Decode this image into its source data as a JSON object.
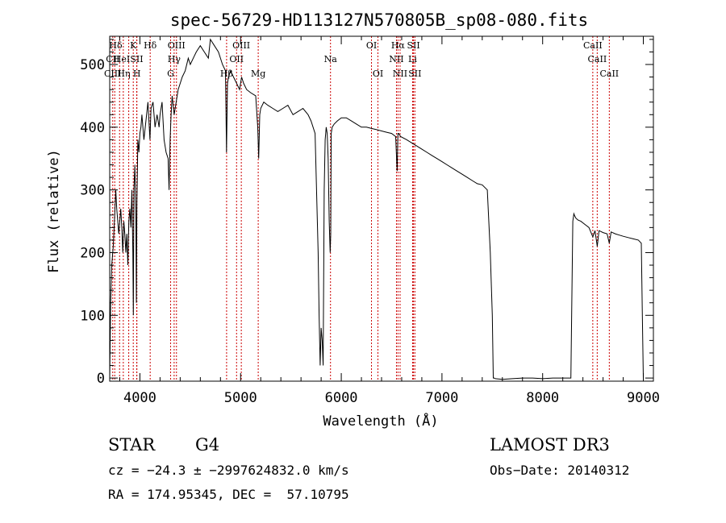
{
  "chart_data": {
    "type": "line",
    "title": "spec-56729-HD113127N570805B_sp08-080.fits",
    "xlabel": "Wavelength (Å)",
    "ylabel": "Flux (relative)",
    "xlim": [
      3700,
      9100
    ],
    "ylim": [
      -5,
      545
    ],
    "xticks": [
      4000,
      5000,
      6000,
      7000,
      8000,
      9000
    ],
    "yticks": [
      0,
      100,
      200,
      300,
      400,
      500
    ],
    "grid": false,
    "series": [
      {
        "x": [
          3700,
          3710,
          3720,
          3735,
          3750,
          3760,
          3770,
          3780,
          3790,
          3800,
          3810,
          3820,
          3830,
          3840,
          3850,
          3860,
          3870,
          3880,
          3890,
          3900,
          3910,
          3920,
          3930,
          3935,
          3940,
          3950,
          3960,
          3965,
          3970,
          3980,
          3990,
          4000,
          4010,
          4020,
          4040,
          4060,
          4080,
          4100,
          4110,
          4130,
          4150,
          4170,
          4190,
          4200,
          4220,
          4240,
          4260,
          4280,
          4290,
          4300,
          4310,
          4320,
          4340,
          4360,
          4380,
          4400,
          4420,
          4450,
          4480,
          4500,
          4530,
          4560,
          4600,
          4640,
          4680,
          4700,
          4740,
          4780,
          4820,
          4850,
          4860,
          4870,
          4880,
          4900,
          4930,
          4960,
          4990,
          5010,
          5030,
          5060,
          5100,
          5150,
          5170,
          5180,
          5190,
          5200,
          5230,
          5270,
          5320,
          5370,
          5420,
          5470,
          5520,
          5570,
          5620,
          5670,
          5700,
          5740,
          5770,
          5780,
          5790,
          5800,
          5810,
          5820,
          5830,
          5840,
          5850,
          5860,
          5870,
          5880,
          5890,
          5895,
          5900,
          5910,
          5930,
          5960,
          6000,
          6050,
          6100,
          6150,
          6200,
          6250,
          6300,
          6350,
          6400,
          6450,
          6500,
          6540,
          6555,
          6563,
          6570,
          6590,
          6650,
          6700,
          6750,
          6800,
          6850,
          6900,
          6950,
          7000,
          7050,
          7100,
          7150,
          7200,
          7250,
          7300,
          7350,
          7400,
          7450,
          7480,
          7500,
          7510,
          7520,
          7530,
          7600,
          7700,
          7800,
          7900,
          8000,
          8100,
          8200,
          8280,
          8300,
          8310,
          8320,
          8330,
          8350,
          8380,
          8420,
          8460,
          8498,
          8520,
          8542,
          8560,
          8600,
          8640,
          8662,
          8680,
          8720,
          8760,
          8800,
          8850,
          8900,
          8950,
          8980,
          8990,
          9000
        ],
        "y": [
          0,
          120,
          180,
          210,
          260,
          300,
          270,
          250,
          230,
          250,
          270,
          240,
          200,
          250,
          230,
          200,
          230,
          180,
          250,
          270,
          240,
          300,
          200,
          100,
          300,
          340,
          250,
          120,
          280,
          380,
          360,
          390,
          400,
          420,
          380,
          410,
          440,
          380,
          430,
          440,
          400,
          420,
          400,
          420,
          440,
          380,
          360,
          350,
          300,
          380,
          420,
          450,
          420,
          440,
          460,
          470,
          480,
          490,
          510,
          500,
          510,
          520,
          530,
          520,
          510,
          540,
          530,
          520,
          500,
          490,
          360,
          470,
          480,
          490,
          480,
          470,
          460,
          480,
          470,
          460,
          455,
          450,
          400,
          350,
          420,
          430,
          440,
          435,
          430,
          425,
          430,
          435,
          420,
          425,
          430,
          420,
          410,
          390,
          200,
          100,
          20,
          80,
          60,
          20,
          300,
          380,
          400,
          390,
          350,
          250,
          200,
          230,
          390,
          400,
          405,
          410,
          415,
          415,
          410,
          405,
          400,
          400,
          398,
          396,
          394,
          392,
          390,
          385,
          330,
          390,
          390,
          385,
          380,
          375,
          370,
          365,
          360,
          355,
          350,
          345,
          340,
          335,
          330,
          325,
          320,
          315,
          310,
          308,
          300,
          200,
          100,
          0,
          0,
          -1,
          -2,
          -1,
          0,
          0,
          -1,
          0,
          0,
          0,
          250,
          262,
          258,
          255,
          252,
          250,
          245,
          240,
          225,
          235,
          210,
          235,
          232,
          230,
          215,
          233,
          230,
          228,
          226,
          224,
          222,
          220,
          215,
          100,
          0
        ]
      }
    ],
    "annotations": [
      {
        "label": "Hδ",
        "x": 3760,
        "row": 0
      },
      {
        "label": "CII",
        "x": 3730,
        "row": 1
      },
      {
        "label": "CIII",
        "x": 3730,
        "row": 2
      },
      {
        "label": "HeI",
        "x": 3820,
        "row": 1
      },
      {
        "label": "Hη",
        "x": 3840,
        "row": 2
      },
      {
        "label": "K",
        "x": 3934,
        "row": 0
      },
      {
        "label": "SII",
        "x": 3968,
        "row": 1
      },
      {
        "label": "H",
        "x": 3970,
        "row": 2
      },
      {
        "label": "Hδ",
        "x": 4102,
        "row": 0
      },
      {
        "label": "OIII",
        "x": 4363,
        "row": 0
      },
      {
        "label": "Hγ",
        "x": 4340,
        "row": 1
      },
      {
        "label": "G",
        "x": 4305,
        "row": 2
      },
      {
        "label": "OIII",
        "x": 5007,
        "row": 0
      },
      {
        "label": "OII",
        "x": 4960,
        "row": 1
      },
      {
        "label": "Hβ",
        "x": 4861,
        "row": 2
      },
      {
        "label": "Mg",
        "x": 5175,
        "row": 2
      },
      {
        "label": "Na",
        "x": 5893,
        "row": 1
      },
      {
        "label": "OI",
        "x": 6300,
        "row": 0
      },
      {
        "label": "OI",
        "x": 6364,
        "row": 2
      },
      {
        "label": "Hα",
        "x": 6563,
        "row": 0
      },
      {
        "label": "NII",
        "x": 6548,
        "row": 1
      },
      {
        "label": "NII",
        "x": 6584,
        "row": 2
      },
      {
        "label": "SII",
        "x": 6717,
        "row": 0
      },
      {
        "label": "Li",
        "x": 6708,
        "row": 1
      },
      {
        "label": "SII",
        "x": 6731,
        "row": 2
      },
      {
        "label": "CaII",
        "x": 8498,
        "row": 0
      },
      {
        "label": "CaII",
        "x": 8542,
        "row": 1
      },
      {
        "label": "CaII",
        "x": 8662,
        "row": 2
      }
    ],
    "line_markers": [
      3730,
      3750,
      3798,
      3835,
      3889,
      3934,
      3968,
      3970,
      4102,
      4305,
      4340,
      4363,
      4861,
      4960,
      5007,
      5175,
      5893,
      6300,
      6364,
      6548,
      6563,
      6584,
      6708,
      6717,
      6731,
      8498,
      8542,
      8662
    ],
    "marker_color": "#cc0000"
  },
  "info": {
    "class": "STAR",
    "subclass": "G4",
    "survey": "LAMOST DR3",
    "cz": "cz = −24.3 ± −2997624832.0 km/s",
    "obs_date": "Obs−Date: 20140312",
    "radec": "RA = 174.95345, DEC =  57.10795"
  }
}
